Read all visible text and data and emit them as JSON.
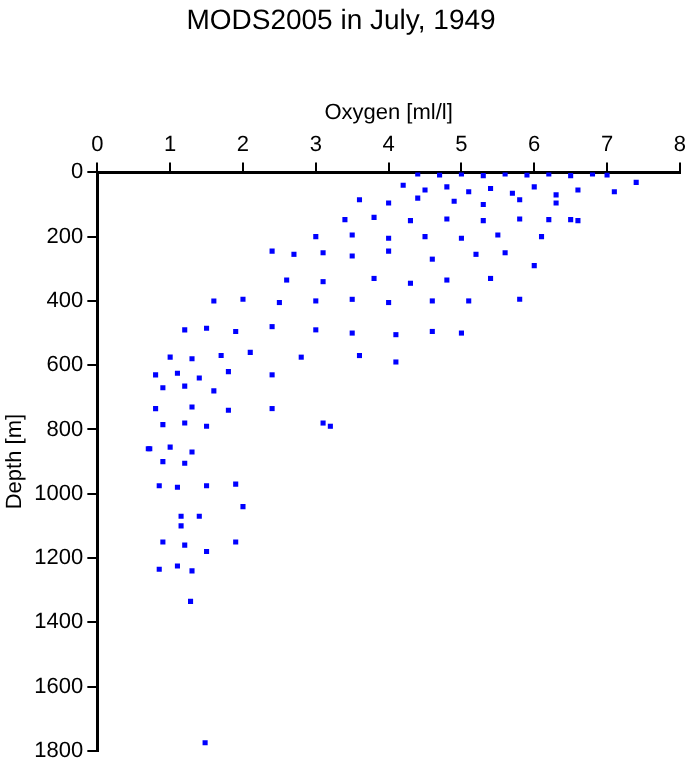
{
  "chart_data": {
    "type": "scatter",
    "title": "MODS2005 in July, 1949",
    "xlabel": "Oxygen [ml/l]",
    "ylabel": "Depth [m]",
    "xlim": [
      0,
      8
    ],
    "xticks": [
      0,
      1,
      2,
      3,
      4,
      5,
      6,
      7,
      8
    ],
    "ylim": [
      1800,
      0
    ],
    "yticks": [
      0,
      200,
      400,
      600,
      800,
      1000,
      1200,
      1400,
      1600,
      1800
    ],
    "grid": false,
    "legend": false,
    "marker": "square",
    "series": [
      {
        "color": "#0000ff",
        "x": [
          4.4,
          4.7,
          5.0,
          5.3,
          5.6,
          5.9,
          6.2,
          6.5,
          6.8,
          7.0,
          7.4,
          4.2,
          4.5,
          4.8,
          5.1,
          5.4,
          5.7,
          6.0,
          6.3,
          6.6,
          7.1,
          3.6,
          4.0,
          4.4,
          4.9,
          5.3,
          5.8,
          6.3,
          6.5,
          3.4,
          3.8,
          4.3,
          4.8,
          5.3,
          5.8,
          6.2,
          6.6,
          3.0,
          3.5,
          4.0,
          4.5,
          5.0,
          5.5,
          6.1,
          2.4,
          2.7,
          3.1,
          3.5,
          4.0,
          4.6,
          5.2,
          5.6,
          6.0,
          2.6,
          3.1,
          3.8,
          4.3,
          4.8,
          5.4,
          1.6,
          2.0,
          2.5,
          3.0,
          3.5,
          4.0,
          4.6,
          5.1,
          5.8,
          1.2,
          1.5,
          1.9,
          2.4,
          3.0,
          3.5,
          4.1,
          4.6,
          5.0,
          1.0,
          1.3,
          1.7,
          2.1,
          2.8,
          3.6,
          4.1,
          0.8,
          1.1,
          1.4,
          1.8,
          2.4,
          0.9,
          1.2,
          1.6,
          0.8,
          1.3,
          1.8,
          2.4,
          3.1,
          0.9,
          1.2,
          1.5,
          3.2,
          0.7,
          1.0,
          1.3,
          0.72,
          0.9,
          1.2,
          0.85,
          1.1,
          1.5,
          1.9,
          2.0,
          1.15,
          1.4,
          1.15,
          0.9,
          1.2,
          1.5,
          1.9,
          0.85,
          1.1,
          1.3,
          1.28,
          1.48
        ],
        "values": [
          5,
          8,
          5,
          10,
          5,
          8,
          5,
          10,
          5,
          8,
          31,
          40,
          55,
          45,
          60,
          50,
          65,
          45,
          70,
          55,
          60,
          85,
          95,
          80,
          90,
          100,
          85,
          95,
          147,
          147,
          140,
          150,
          145,
          150,
          145,
          147,
          150,
          200,
          195,
          205,
          200,
          205,
          195,
          200,
          245,
          255,
          250,
          260,
          245,
          270,
          255,
          250,
          290,
          335,
          340,
          330,
          345,
          335,
          330,
          400,
          395,
          405,
          400,
          395,
          405,
          400,
          400,
          395,
          490,
          485,
          495,
          480,
          490,
          500,
          505,
          495,
          500,
          575,
          580,
          570,
          560,
          575,
          570,
          590,
          630,
          625,
          640,
          620,
          630,
          670,
          665,
          680,
          735,
          730,
          740,
          735,
          780,
          785,
          780,
          790,
          790,
          860,
          855,
          870,
          860,
          900,
          905,
          975,
          980,
          975,
          970,
          1040,
          1070,
          1070,
          1100,
          1150,
          1160,
          1180,
          1150,
          1235,
          1225,
          1240,
          1335,
          1775
        ]
      }
    ]
  }
}
